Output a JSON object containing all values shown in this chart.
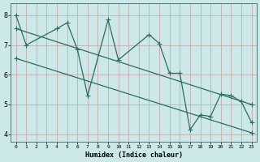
{
  "xlabel": "Humidex (Indice chaleur)",
  "bg_color": "#cce8e8",
  "grid_color": "#c4a0a0",
  "line_color": "#2d6b60",
  "markersize": 3.0,
  "linewidth": 0.9,
  "xlim": [
    -0.5,
    23.5
  ],
  "ylim": [
    3.75,
    8.4
  ],
  "xticks": [
    0,
    1,
    2,
    3,
    4,
    5,
    6,
    7,
    8,
    9,
    10,
    11,
    12,
    13,
    14,
    15,
    16,
    17,
    18,
    19,
    20,
    21,
    22,
    23
  ],
  "yticks": [
    4,
    5,
    6,
    7,
    8
  ],
  "series1_x": [
    0,
    1,
    4,
    5,
    6,
    7,
    9,
    10,
    13,
    14,
    15,
    16,
    17,
    18,
    19,
    20,
    21,
    22,
    23
  ],
  "series1_y": [
    8.0,
    7.0,
    7.55,
    7.75,
    6.85,
    5.3,
    7.85,
    6.5,
    7.35,
    7.05,
    6.05,
    6.05,
    4.15,
    4.65,
    4.6,
    5.35,
    5.3,
    5.1,
    4.4
  ],
  "line1_x": [
    0,
    23
  ],
  "line1_y": [
    7.55,
    5.0
  ],
  "line2_x": [
    0,
    23
  ],
  "line2_y": [
    6.55,
    4.05
  ]
}
